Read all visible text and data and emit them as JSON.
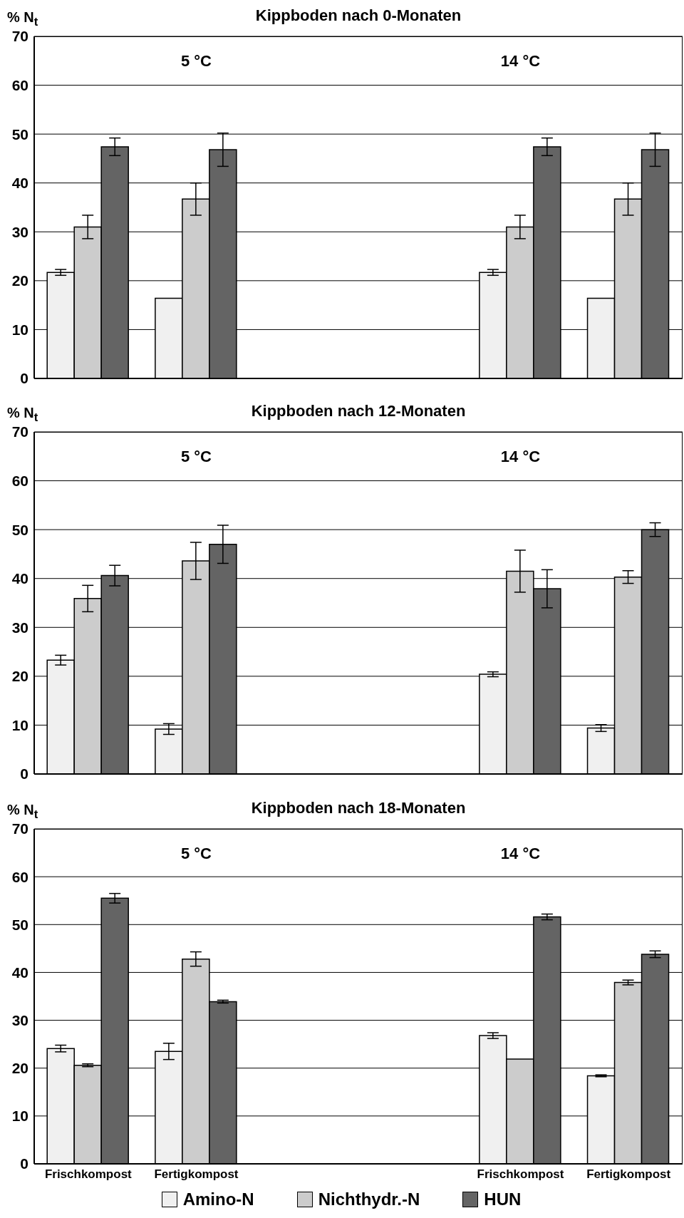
{
  "chart_data": [
    {
      "type": "bar",
      "title": "Kippboden nach 0-Monaten",
      "ylabel": "% N$_{t}$",
      "categories": [
        null,
        null,
        null,
        null,
        null,
        null
      ],
      "ylim": [
        0,
        70
      ],
      "yticks": [
        0,
        10,
        20,
        30,
        40,
        50,
        60,
        70
      ],
      "grid": "y",
      "legend": false,
      "annotations": [
        "5 °C",
        "14 °C"
      ],
      "series": [
        {
          "color": "#f0f0f0",
          "values": [
            21.7,
            16.4,
            null,
            null,
            21.7,
            16.4
          ],
          "errors": [
            0.6,
            null,
            null,
            null,
            0.6,
            null
          ]
        },
        {
          "color": "#cccccc",
          "values": [
            31.0,
            36.7,
            null,
            null,
            31.0,
            36.7
          ],
          "errors": [
            2.4,
            3.3,
            null,
            null,
            2.4,
            3.3
          ]
        },
        {
          "color": "#646464",
          "values": [
            47.4,
            46.8,
            null,
            null,
            47.4,
            46.8
          ],
          "errors": [
            1.8,
            3.4,
            null,
            null,
            1.8,
            3.4
          ]
        }
      ]
    },
    {
      "type": "bar",
      "title": "Kippboden nach 12-Monaten",
      "ylabel": "% N$_{t}$",
      "categories": [
        null,
        null,
        null,
        null,
        null,
        null
      ],
      "ylim": [
        0,
        70
      ],
      "yticks": [
        0,
        10,
        20,
        30,
        40,
        50,
        60,
        70
      ],
      "grid": "y",
      "legend": false,
      "annotations": [
        "5 °C",
        "14 °C"
      ],
      "series": [
        {
          "color": "#f0f0f0",
          "values": [
            23.3,
            9.2,
            null,
            null,
            20.4,
            9.4
          ],
          "errors": [
            1.0,
            1.1,
            null,
            null,
            0.5,
            0.7
          ]
        },
        {
          "color": "#cccccc",
          "values": [
            35.9,
            43.6,
            null,
            null,
            41.5,
            40.3
          ],
          "errors": [
            2.7,
            3.8,
            null,
            null,
            4.3,
            1.3
          ]
        },
        {
          "color": "#646464",
          "values": [
            40.6,
            47.0,
            null,
            null,
            37.9,
            50.0
          ],
          "errors": [
            2.1,
            3.9,
            null,
            null,
            3.9,
            1.4
          ]
        }
      ]
    },
    {
      "type": "bar",
      "title": "Kippboden nach 18-Monaten",
      "ylabel": "% N$_{t}$",
      "categories": [
        "Frischkompost",
        "Fertigkompost",
        null,
        null,
        "Frischkompost",
        "Fertigkompost"
      ],
      "ylim": [
        0,
        70
      ],
      "yticks": [
        0,
        10,
        20,
        30,
        40,
        50,
        60,
        70
      ],
      "grid": "y",
      "legend": "bottom",
      "annotations": [
        "5 °C",
        "14 °C"
      ],
      "series": [
        {
          "name": "Amino-N",
          "color": "#f0f0f0",
          "values": [
            24.1,
            23.5,
            null,
            null,
            26.8,
            18.4
          ],
          "errors": [
            0.7,
            1.7,
            null,
            null,
            0.6,
            0.2
          ]
        },
        {
          "name": "Nichthydr.-N",
          "color": "#cccccc",
          "values": [
            20.6,
            42.8,
            null,
            null,
            21.9,
            37.9
          ],
          "errors": [
            0.3,
            1.5,
            null,
            null,
            null,
            0.5
          ]
        },
        {
          "name": "HUN",
          "color": "#646464",
          "values": [
            55.5,
            33.9,
            null,
            null,
            51.6,
            43.8
          ],
          "errors": [
            1.0,
            0.3,
            null,
            null,
            0.6,
            0.7
          ]
        }
      ]
    }
  ]
}
